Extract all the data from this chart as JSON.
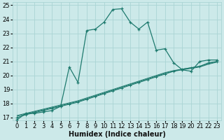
{
  "xlabel": "Humidex (Indice chaleur)",
  "bg_color": "#cce9e9",
  "grid_color": "#aad4d4",
  "line_color": "#1e7a6e",
  "xlim": [
    -0.5,
    23.5
  ],
  "ylim": [
    16.8,
    25.2
  ],
  "xticks": [
    0,
    1,
    2,
    3,
    4,
    5,
    6,
    7,
    8,
    9,
    10,
    11,
    12,
    13,
    14,
    15,
    16,
    17,
    18,
    19,
    20,
    21,
    22,
    23
  ],
  "yticks": [
    17,
    18,
    19,
    20,
    21,
    22,
    23,
    24,
    25
  ],
  "series1_x": [
    0,
    1,
    2,
    3,
    4,
    5,
    6,
    7,
    8,
    9,
    10,
    11,
    12,
    13,
    14,
    15,
    16,
    17,
    18,
    19,
    20,
    21,
    22,
    23
  ],
  "series1_y": [
    16.85,
    17.3,
    17.3,
    17.4,
    17.5,
    17.8,
    20.6,
    19.5,
    23.2,
    23.3,
    23.8,
    24.7,
    24.75,
    23.8,
    23.3,
    23.8,
    21.8,
    21.9,
    20.9,
    20.4,
    20.3,
    21.0,
    21.1,
    21.1
  ],
  "series2_x": [
    0,
    1,
    2,
    3,
    4,
    5,
    6,
    7,
    8,
    9,
    10,
    11,
    12,
    13,
    14,
    15,
    16,
    17,
    18,
    19,
    20,
    21,
    22,
    23
  ],
  "series2_y": [
    17.0,
    17.2,
    17.35,
    17.5,
    17.65,
    17.8,
    17.95,
    18.1,
    18.3,
    18.5,
    18.7,
    18.9,
    19.1,
    19.3,
    19.5,
    19.7,
    19.9,
    20.1,
    20.3,
    20.45,
    20.55,
    20.65,
    20.9,
    21.0
  ],
  "series3_x": [
    0,
    1,
    2,
    3,
    4,
    5,
    6,
    7,
    8,
    9,
    10,
    11,
    12,
    13,
    14,
    15,
    16,
    17,
    18,
    19,
    20,
    21,
    22,
    23
  ],
  "series3_y": [
    17.1,
    17.25,
    17.4,
    17.55,
    17.7,
    17.85,
    18.0,
    18.15,
    18.35,
    18.55,
    18.75,
    18.95,
    19.15,
    19.35,
    19.55,
    19.75,
    19.95,
    20.15,
    20.3,
    20.4,
    20.5,
    20.6,
    20.8,
    20.95
  ],
  "series4_x": [
    0,
    1,
    2,
    3,
    4,
    5,
    6,
    7,
    8,
    9,
    10,
    11,
    12,
    13,
    14,
    15,
    16,
    17,
    18,
    19,
    20,
    21,
    22,
    23
  ],
  "series4_y": [
    17.15,
    17.3,
    17.45,
    17.6,
    17.75,
    17.9,
    18.05,
    18.2,
    18.4,
    18.6,
    18.8,
    19.0,
    19.2,
    19.4,
    19.6,
    19.8,
    20.0,
    20.2,
    20.35,
    20.45,
    20.55,
    20.65,
    20.85,
    21.0
  ],
  "xlabel_fontsize": 7,
  "tick_fontsize": 6
}
